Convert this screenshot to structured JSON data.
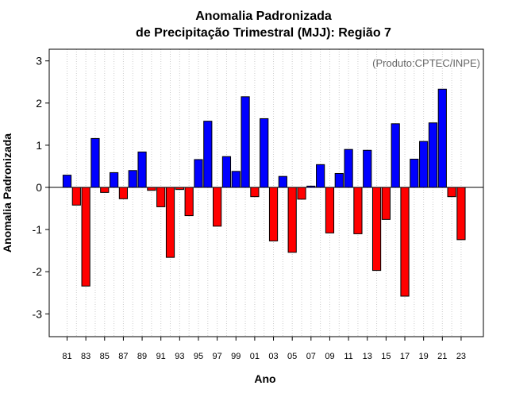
{
  "chart_data": {
    "type": "bar",
    "title_lines": [
      "Anomalia Padronizada",
      "de Precipitação Trimestral (MJJ): Região 7"
    ],
    "xlabel": "Ano",
    "ylabel": "Anomalia Padronizada",
    "annotation": "(Produto:CPTEC/INPE)",
    "ylim": [
      -3.6,
      3.3
    ],
    "yticks": [
      -3,
      -2,
      -1,
      0,
      1,
      2,
      3
    ],
    "ytick_labels": [
      "-3",
      "-2",
      "-1",
      "0",
      "1",
      "2",
      "3"
    ],
    "grid": "vertical dotted",
    "positive_color": "#0000ff",
    "negative_color": "#ff0000",
    "categories": [
      "81",
      "82",
      "83",
      "84",
      "85",
      "86",
      "87",
      "88",
      "89",
      "90",
      "91",
      "92",
      "93",
      "94",
      "95",
      "96",
      "97",
      "98",
      "99",
      "00",
      "01",
      "02",
      "03",
      "04",
      "05",
      "06",
      "07",
      "08",
      "09",
      "10",
      "11",
      "12",
      "13",
      "14",
      "15",
      "16",
      "17",
      "18",
      "19",
      "20",
      "21",
      "22",
      "23"
    ],
    "xtick_labels": [
      "81",
      "83",
      "85",
      "87",
      "89",
      "91",
      "93",
      "95",
      "97",
      "99",
      "01",
      "03",
      "05",
      "07",
      "09",
      "11",
      "13",
      "15",
      "17",
      "19",
      "21",
      "23"
    ],
    "values": [
      0.29,
      -0.42,
      -2.34,
      1.16,
      -0.12,
      0.35,
      -0.27,
      0.4,
      0.84,
      -0.07,
      -0.46,
      -1.66,
      -0.05,
      -0.67,
      0.66,
      1.57,
      -0.92,
      0.73,
      0.38,
      2.15,
      -0.22,
      1.63,
      -1.27,
      0.26,
      -1.54,
      -0.28,
      0.03,
      0.54,
      -1.08,
      0.33,
      0.9,
      -1.1,
      0.88,
      -1.97,
      -0.76,
      1.51,
      -2.58,
      0.67,
      1.09,
      1.53,
      2.33,
      -0.22,
      -1.24
    ]
  }
}
